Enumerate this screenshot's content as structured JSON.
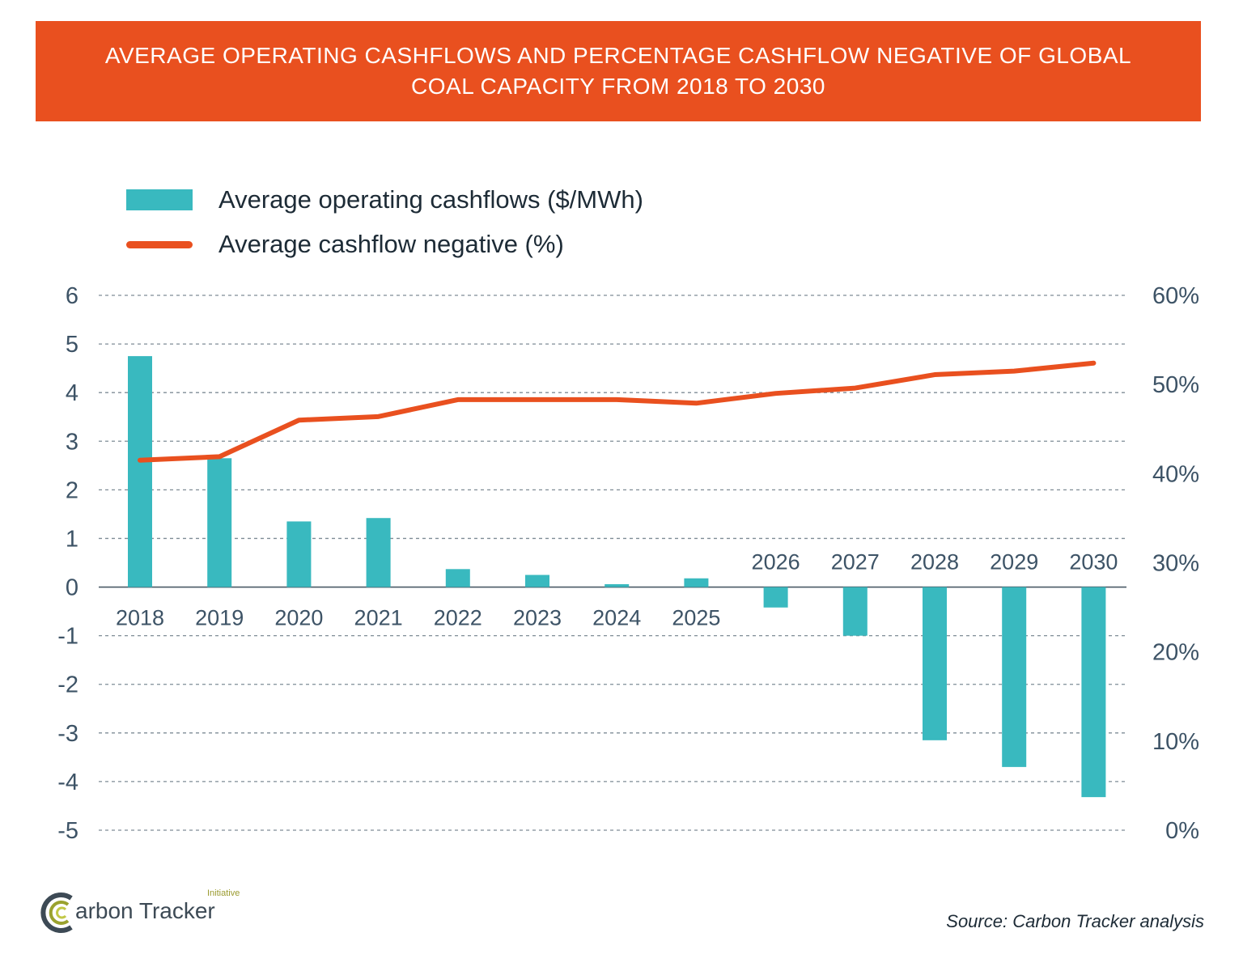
{
  "title_lines": [
    "AVERAGE OPERATING CASHFLOWS AND PERCENTAGE CASHFLOW NEGATIVE OF GLOBAL",
    "COAL CAPACITY FROM 2018 TO 2030"
  ],
  "legend": {
    "bar_label": "Average operating cashflows ($/MWh)",
    "line_label": "Average cashflow negative (%)"
  },
  "colors": {
    "banner": "#e9501f",
    "bar": "#39b9bf",
    "line": "#e9501f",
    "grid": "#7f8c96"
  },
  "chart_data": {
    "type": "bar",
    "categories": [
      "2018",
      "2019",
      "2020",
      "2021",
      "2022",
      "2023",
      "2024",
      "2025",
      "2026",
      "2027",
      "2028",
      "2029",
      "2030"
    ],
    "series": [
      {
        "name": "Average operating cashflows ($/MWh)",
        "type": "bar",
        "axis": "left",
        "values": [
          4.75,
          2.65,
          1.35,
          1.42,
          0.37,
          0.25,
          0.06,
          0.18,
          -0.42,
          -1.0,
          -3.15,
          -3.7,
          -4.32
        ]
      },
      {
        "name": "Average cashflow negative (%)",
        "type": "line",
        "axis": "right",
        "values": [
          41.5,
          41.9,
          46.0,
          46.4,
          48.3,
          48.3,
          48.3,
          47.9,
          49.0,
          49.6,
          51.1,
          51.5,
          52.4
        ]
      }
    ],
    "left_axis": {
      "ylim": [
        -5,
        6
      ],
      "ticks": [
        "6",
        "5",
        "4",
        "3",
        "2",
        "1",
        "0",
        "-1",
        "-2",
        "-3",
        "-4",
        "-5"
      ]
    },
    "right_axis": {
      "ylim": [
        0,
        60
      ],
      "ticks": [
        "60%",
        "50%",
        "40%",
        "30%",
        "20%",
        "10%",
        "0%"
      ]
    },
    "grid": true,
    "legend_position": "top-left"
  },
  "source": "Source: Carbon Tracker analysis",
  "logo": {
    "main": "arbon Tracker",
    "sub": "Initiative"
  }
}
